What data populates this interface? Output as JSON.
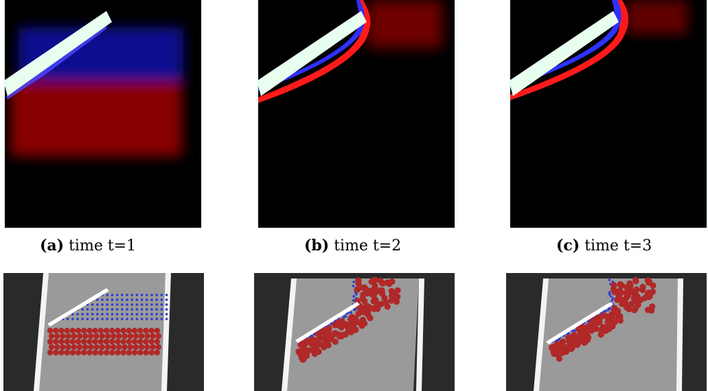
{
  "figures": [
    {
      "id": "a",
      "tag": "(a)",
      "label": "time t=1"
    },
    {
      "id": "b",
      "tag": "(b)",
      "label": "time t=2"
    },
    {
      "id": "c",
      "tag": "(c)",
      "label": "time t=3"
    }
  ],
  "colors": {
    "fluid_blue": "#1010ff",
    "fluid_red": "#ff1010",
    "wall": "#e8fff0",
    "sim_bg": "#000000",
    "render_bg": "#2a2a2a",
    "render_floor": "#9a9a9a",
    "particle_red": "#b02828",
    "particle_blue": "#2a3ad0"
  }
}
